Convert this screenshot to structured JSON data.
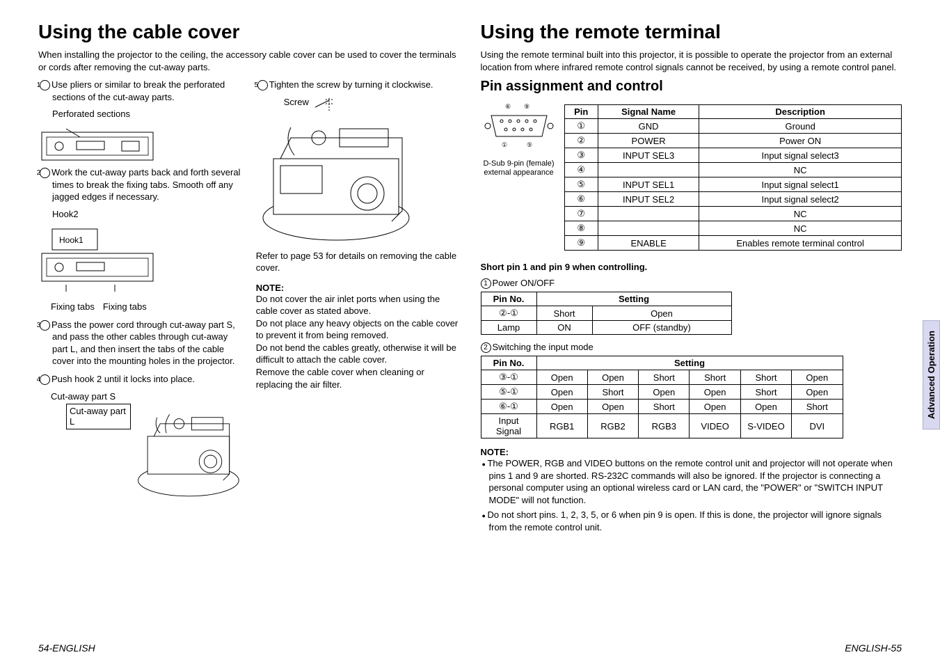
{
  "left": {
    "title": "Using the cable cover",
    "intro": "When installing the projector to the ceiling, the accessory cable cover can be used to cover the terminals or cords after removing the cut-away parts.",
    "steps": {
      "s1": "Use pliers or similar to break the perforated sections of the cut-away parts.",
      "perf_label": "Perforated sections",
      "s2": "Work the cut-away parts back and forth several times to break the fixing tabs. Smooth off any jagged edges if necessary.",
      "hook2": "Hook2",
      "hook1": "Hook1",
      "fixing_tabs": "Fixing tabs",
      "fixing_tabs2": "Fixing tabs",
      "s3": "Pass the power cord through cut-away part S, and pass the other cables through cut-away part L, and then insert the tabs of the cable cover into the mounting holes in the projector.",
      "s4": "Push hook 2 until it locks into place.",
      "cutS": "Cut-away part S",
      "cutL": "Cut-away part L",
      "s5": "Tighten the screw by turning it clockwise.",
      "screw": "Screw",
      "refer": "Refer to page 53 for details on removing the cable cover."
    },
    "note_head": "NOTE:",
    "note_body": "Do not cover the air inlet ports when using the cable cover as stated above.\nDo not place any heavy objects on the cable cover to prevent it from being removed.\nDo not bend the cables greatly, otherwise it will be difficult to attach the cable cover.\nRemove the cable cover when cleaning or replacing the air filter."
  },
  "right": {
    "title": "Using the remote terminal",
    "intro": "Using the remote terminal built into this projector, it is possible to operate the projector from an external location from where infrared remote control signals cannot be received, by using a remote control panel.",
    "pin_head": "Pin assignment and control",
    "connector_caption": "D-Sub 9-pin (female) external appearance",
    "table1": {
      "headers": [
        "Pin",
        "Signal Name",
        "Description"
      ],
      "rows": [
        [
          "①",
          "GND",
          "Ground"
        ],
        [
          "②",
          "POWER",
          "Power ON"
        ],
        [
          "③",
          "INPUT SEL3",
          "Input signal select3"
        ],
        [
          "④",
          "",
          "NC"
        ],
        [
          "⑤",
          "INPUT SEL1",
          "Input signal select1"
        ],
        [
          "⑥",
          "INPUT SEL2",
          "Input signal select2"
        ],
        [
          "⑦",
          "",
          "NC"
        ],
        [
          "⑧",
          "",
          "NC"
        ],
        [
          "⑨",
          "ENABLE",
          "Enables remote terminal control"
        ]
      ]
    },
    "short_note": "Short pin 1 and pin 9 when controlling.",
    "t2_caption": "Power ON/OFF",
    "table2": {
      "headers": [
        "Pin No.",
        "Setting"
      ],
      "cols": 2,
      "rows": [
        [
          "②-①",
          "Short",
          "Open"
        ],
        [
          "Lamp",
          "ON",
          "OFF (standby)"
        ]
      ]
    },
    "t3_caption": "Switching the input mode",
    "table3": {
      "headers": [
        "Pin No.",
        "Setting"
      ],
      "rows": [
        [
          "③-①",
          "Open",
          "Open",
          "Short",
          "Short",
          "Short",
          "Open"
        ],
        [
          "⑤-①",
          "Open",
          "Short",
          "Open",
          "Open",
          "Short",
          "Open"
        ],
        [
          "⑥-①",
          "Open",
          "Open",
          "Short",
          "Open",
          "Open",
          "Short"
        ],
        [
          "Input Signal",
          "RGB1",
          "RGB2",
          "RGB3",
          "VIDEO",
          "S-VIDEO",
          "DVI"
        ]
      ]
    },
    "note_head": "NOTE:",
    "notes": [
      "The POWER, RGB and VIDEO buttons on the remote control unit and projector will not operate when pins 1 and 9 are shorted. RS-232C commands will also be ignored. If the projector is connecting a personal computer using an optional wireless card or LAN card, the \"POWER\" or \"SWITCH INPUT MODE\" will not function.",
      "Do not short pins. 1, 2, 3, 5, or 6 when pin 9 is open. If this is done, the projector will ignore signals from the remote control unit."
    ],
    "side_tab": "Advanced Operation"
  },
  "footer_left_num": "54-",
  "footer_left_lang": "ENGLISH",
  "footer_right_lang": "ENGLISH",
  "footer_right_num": "-55",
  "colors": {
    "text": "#000000",
    "bg": "#ffffff",
    "tab_bg": "#d8d8f0",
    "tab_border": "#b0b0d0"
  }
}
